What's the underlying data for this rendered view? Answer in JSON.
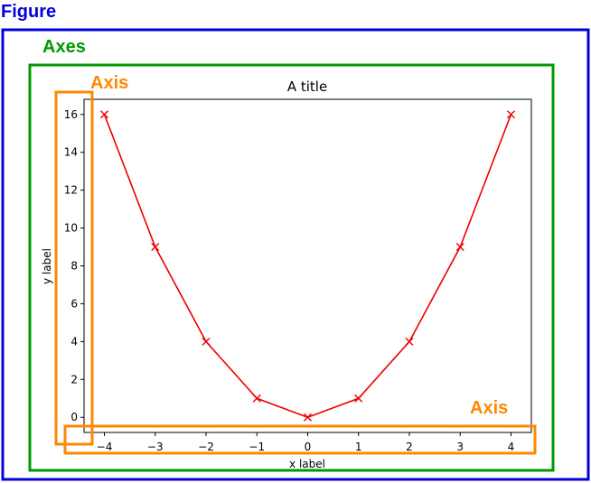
{
  "annotations": {
    "figure_label": "Figure",
    "axes_label": "Axes",
    "axis_label_y": "Axis",
    "axis_label_x": "Axis",
    "figure_color": "#0000dd",
    "axes_color": "#009900",
    "axis_color": "#ff8800"
  },
  "chart_data": {
    "type": "line",
    "title": "A title",
    "xlabel": "x label",
    "ylabel": "y label",
    "x": [
      -4,
      -3,
      -2,
      -1,
      0,
      1,
      2,
      3,
      4
    ],
    "y": [
      16,
      9,
      4,
      1,
      0,
      1,
      4,
      9,
      16
    ],
    "xticks": [
      -4,
      -3,
      -2,
      -1,
      0,
      1,
      2,
      3,
      4
    ],
    "xtick_labels": [
      "−4",
      "−3",
      "−2",
      "−1",
      "0",
      "1",
      "2",
      "3",
      "4"
    ],
    "yticks": [
      0,
      2,
      4,
      6,
      8,
      10,
      12,
      14,
      16
    ],
    "ytick_labels": [
      "0",
      "2",
      "4",
      "6",
      "8",
      "10",
      "12",
      "14",
      "16"
    ],
    "xlim": [
      -4.4,
      4.4
    ],
    "ylim": [
      -0.8,
      16.8
    ],
    "line_color": "#ee0000",
    "marker": "x",
    "grid": false
  }
}
